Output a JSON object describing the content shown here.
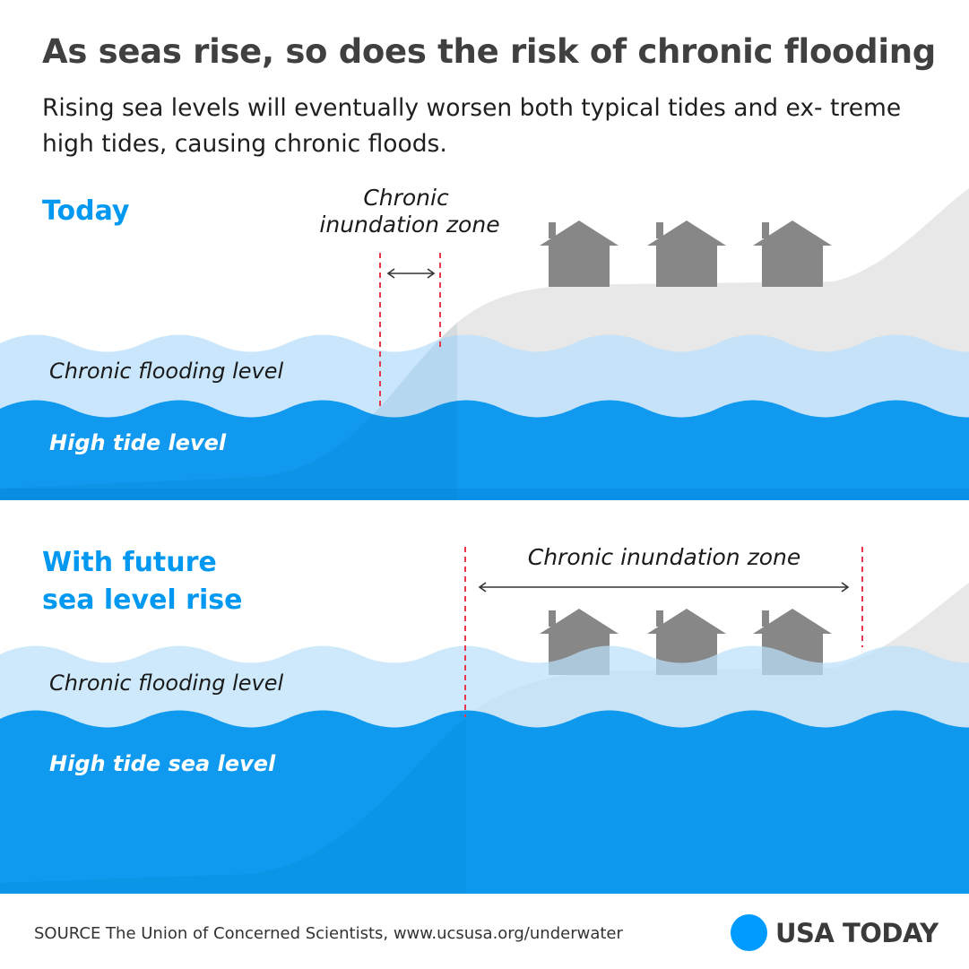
{
  "header": {
    "title": "As seas rise, so does the risk of chronic flooding",
    "subtitle": "Rising sea levels will eventually worsen both typical tides and ex- treme high tides, causing chronic floods."
  },
  "panels": [
    {
      "heading_lines": [
        "Today"
      ],
      "zone_label_lines": [
        "Chronic",
        "inundation zone"
      ],
      "upper_level_label": "Chronic flooding level",
      "lower_level_label": "High tide level"
    },
    {
      "heading_lines": [
        "With future",
        "sea level rise"
      ],
      "zone_label_lines": [
        "Chronic inundation zone"
      ],
      "upper_level_label": "Chronic flooding level",
      "lower_level_label": "High tide sea level"
    }
  ],
  "footer": {
    "source": "SOURCE The Union of Concerned Scientists, www.ucsusa.org/underwater",
    "brand": "USA TODAY"
  },
  "colors": {
    "heading_blue": "#0098f0",
    "chronic_water": "#bbe0fb",
    "high_tide_water": "#0093ee",
    "land": "#e8e8e8",
    "house": "#878787",
    "dashed_marker": "#e8374a",
    "logo_dot": "#009bff"
  },
  "icons": [
    "house-icon",
    "double-arrow-icon"
  ]
}
